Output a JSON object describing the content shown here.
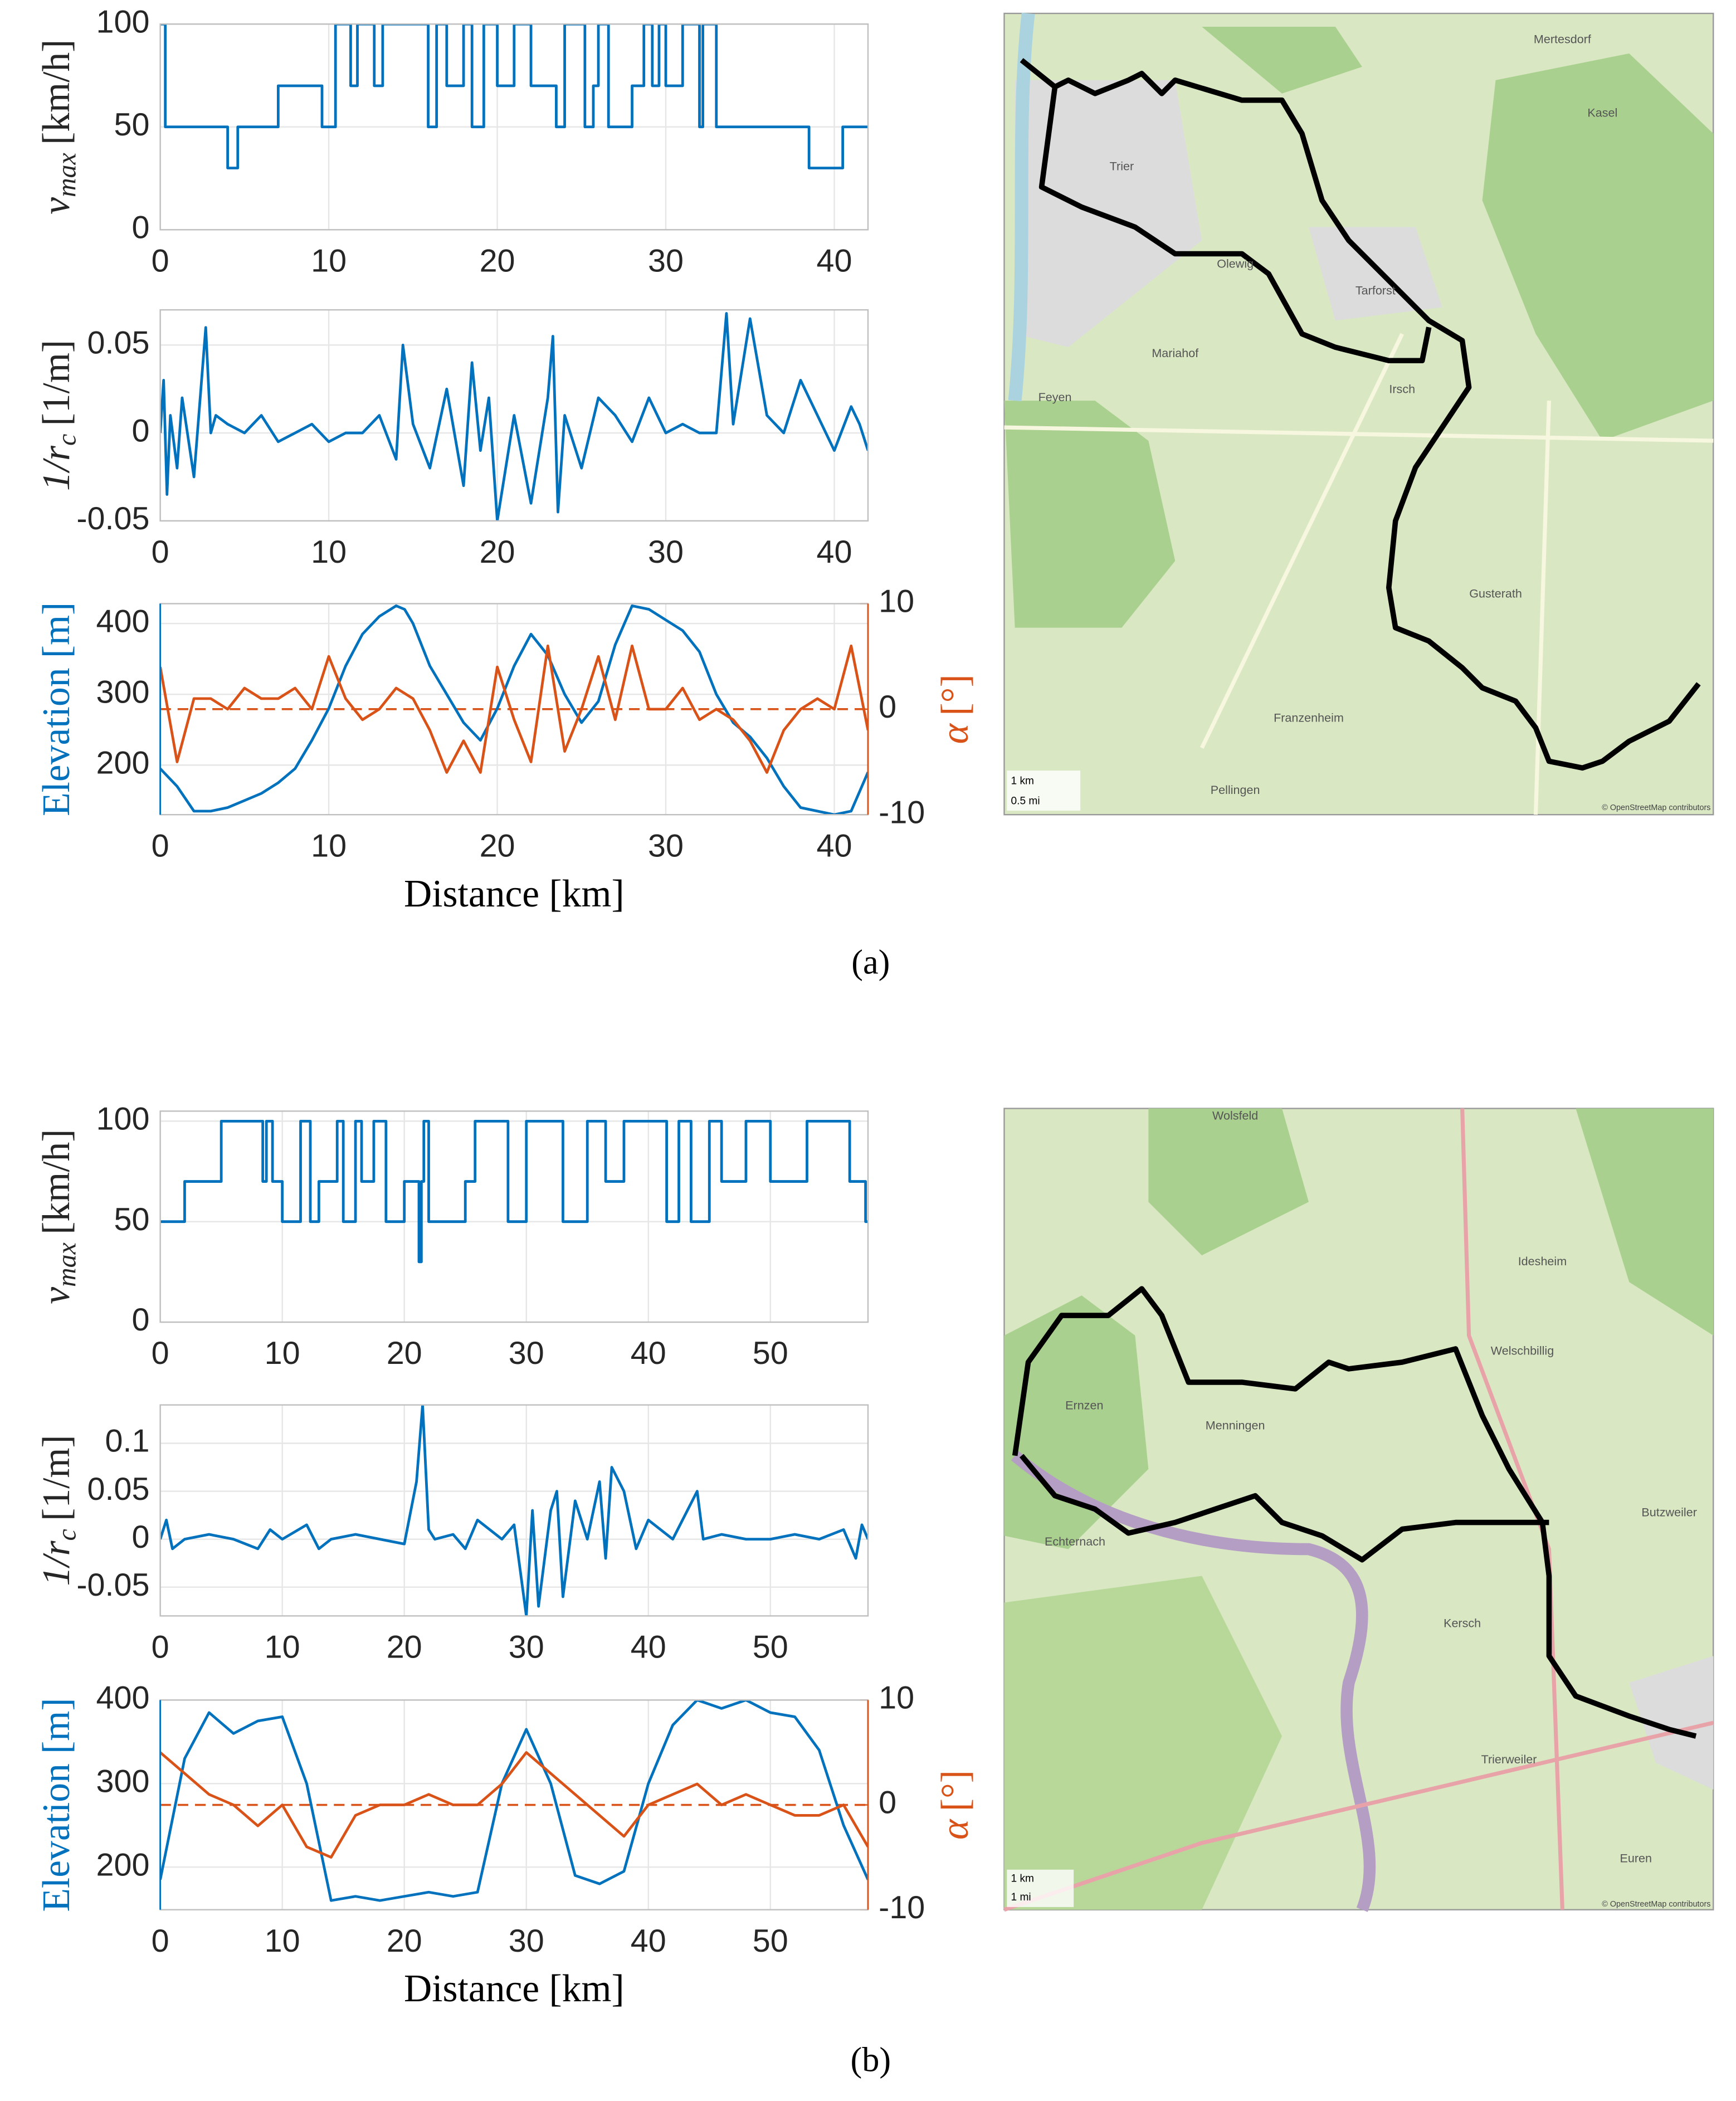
{
  "chart_data": [
    {
      "type": "line",
      "xlim": [
        0,
        42
      ],
      "xticks": [
        0,
        10,
        20,
        30,
        40
      ],
      "ylim": [
        0,
        100
      ],
      "yticks": [
        0,
        50,
        100
      ],
      "grid": true,
      "ylabel": {
        "symbol": "v",
        "subscript": "max",
        "unit": "[km/h]"
      },
      "series": [
        {
          "color": "#0072bd",
          "step": true,
          "x": [
            0,
            0.3,
            4,
            4.6,
            7,
            9.6,
            10.4,
            11.3,
            11.7,
            12.7,
            13.2,
            15.9,
            16.4,
            17,
            18,
            18.5,
            19.2,
            20,
            21,
            22,
            23.5,
            24,
            25.2,
            25.7,
            26,
            26.6,
            28,
            28.7,
            29.2,
            29.6,
            30,
            31,
            32,
            32.2,
            33,
            38.5,
            40.5,
            42
          ],
          "values": [
            100,
            50,
            30,
            50,
            70,
            50,
            100,
            70,
            100,
            70,
            100,
            50,
            100,
            70,
            100,
            50,
            100,
            70,
            100,
            70,
            50,
            100,
            50,
            70,
            100,
            50,
            70,
            100,
            70,
            100,
            70,
            100,
            50,
            100,
            50,
            30,
            50,
            50
          ]
        }
      ]
    },
    {
      "type": "line",
      "xlim": [
        0,
        42
      ],
      "xticks": [
        0,
        10,
        20,
        30,
        40
      ],
      "ylim": [
        -0.05,
        0.07
      ],
      "yticks": [
        -0.05,
        0,
        0.05
      ],
      "grid": true,
      "ylabel": {
        "symbol": "1/r",
        "subscript": "c",
        "unit": "[1/m]"
      },
      "series": [
        {
          "color": "#0072bd",
          "x": [
            0,
            0.2,
            0.4,
            0.6,
            1,
            1.3,
            2,
            2.7,
            3,
            3.3,
            4,
            5,
            6,
            7,
            8,
            9,
            10,
            11,
            12,
            13,
            14,
            14.4,
            15,
            16,
            17,
            18,
            18.5,
            19,
            19.5,
            20,
            21,
            22,
            23,
            23.3,
            23.6,
            24,
            25,
            26,
            27,
            28,
            29,
            30,
            31,
            32,
            33,
            33.6,
            34,
            35,
            36,
            37,
            38,
            39,
            40,
            41,
            41.5,
            42
          ],
          "values": [
            0,
            0.03,
            -0.035,
            0.01,
            -0.02,
            0.02,
            -0.025,
            0.06,
            0,
            0.01,
            0.005,
            0,
            0.01,
            -0.005,
            0,
            0.005,
            -0.005,
            0,
            0,
            0.01,
            -0.015,
            0.05,
            0.005,
            -0.02,
            0.025,
            -0.03,
            0.04,
            -0.01,
            0.02,
            -0.05,
            0.01,
            -0.04,
            0.02,
            0.055,
            -0.045,
            0.01,
            -0.02,
            0.02,
            0.01,
            -0.005,
            0.02,
            0,
            0.005,
            0,
            0,
            0.068,
            0.005,
            0.065,
            0.01,
            0,
            0.03,
            0.01,
            -0.01,
            0.015,
            0.005,
            -0.01
          ]
        }
      ]
    },
    {
      "type": "line",
      "xlim": [
        0,
        42
      ],
      "xticks": [
        0,
        10,
        20,
        30,
        40
      ],
      "ylim": [
        130,
        428
      ],
      "yticks": [
        200,
        300,
        400
      ],
      "y2lim": [
        -10,
        10
      ],
      "y2ticks": [
        -10,
        0,
        10
      ],
      "grid": true,
      "xlabel": "Distance [km]",
      "ylabel": "Elevation [m]",
      "y2label": {
        "symbol": "α",
        "unit": "[°]"
      },
      "y2_reference_line": 0,
      "series": [
        {
          "color": "#0072bd",
          "x": [
            0,
            1,
            2,
            3,
            4,
            5,
            6,
            7,
            8,
            9,
            10,
            11,
            12,
            13,
            14,
            14.5,
            15,
            16,
            17,
            18,
            19,
            20,
            21,
            22,
            23,
            24,
            25,
            26,
            27,
            28,
            29,
            30,
            31,
            32,
            33,
            34,
            35,
            36,
            37,
            38,
            39,
            40,
            41,
            42
          ],
          "values": [
            195,
            170,
            135,
            135,
            140,
            150,
            160,
            175,
            195,
            235,
            280,
            340,
            385,
            410,
            425,
            420,
            400,
            340,
            300,
            260,
            235,
            280,
            340,
            385,
            355,
            300,
            260,
            290,
            370,
            425,
            420,
            405,
            390,
            360,
            300,
            260,
            240,
            210,
            170,
            140,
            135,
            130,
            135,
            190
          ]
        },
        {
          "color": "#d95319",
          "axis": "y2",
          "x": [
            0,
            1,
            2,
            3,
            4,
            5,
            6,
            7,
            8,
            9,
            10,
            11,
            12,
            13,
            14,
            15,
            16,
            17,
            18,
            19,
            20,
            21,
            22,
            23,
            24,
            25,
            26,
            27,
            28,
            29,
            30,
            31,
            32,
            33,
            34,
            35,
            36,
            37,
            38,
            39,
            40,
            41,
            42
          ],
          "values": [
            4,
            -5,
            1,
            1,
            0,
            2,
            1,
            1,
            2,
            0,
            5,
            1,
            -1,
            0,
            2,
            1,
            -2,
            -6,
            -3,
            -6,
            4,
            -1,
            -5,
            6,
            -4,
            0,
            5,
            -1,
            6,
            0,
            0,
            2,
            -1,
            0,
            -1,
            -3,
            -6,
            -2,
            0,
            1,
            0,
            6,
            -2
          ]
        }
      ]
    },
    {
      "type": "line",
      "xlim": [
        0,
        58
      ],
      "xticks": [
        0,
        10,
        20,
        30,
        40,
        50
      ],
      "ylim": [
        0,
        105
      ],
      "yticks": [
        0,
        50,
        100
      ],
      "grid": true,
      "ylabel": {
        "symbol": "v",
        "subscript": "max",
        "unit": "[km/h]"
      },
      "series": [
        {
          "color": "#0072bd",
          "step": true,
          "x": [
            0,
            2,
            5,
            8.4,
            8.7,
            9.2,
            10,
            11.5,
            12.3,
            13,
            14.5,
            15,
            16,
            16.5,
            17.5,
            18.5,
            20,
            21.2,
            21.4,
            21.6,
            22,
            25,
            25.8,
            28.5,
            30,
            33,
            35,
            36.5,
            38,
            41.5,
            42.5,
            43.5,
            45,
            46,
            48,
            50,
            53,
            56.5,
            57.8,
            58
          ],
          "values": [
            50,
            70,
            100,
            70,
            100,
            70,
            50,
            100,
            50,
            70,
            100,
            50,
            100,
            70,
            100,
            50,
            70,
            30,
            70,
            100,
            50,
            70,
            100,
            50,
            100,
            50,
            100,
            70,
            100,
            50,
            100,
            50,
            100,
            70,
            100,
            70,
            100,
            70,
            50,
            50
          ]
        }
      ]
    },
    {
      "type": "line",
      "xlim": [
        0,
        58
      ],
      "xticks": [
        0,
        10,
        20,
        30,
        40,
        50
      ],
      "ylim": [
        -0.08,
        0.14
      ],
      "yticks": [
        -0.05,
        0,
        0.05,
        0.1
      ],
      "grid": true,
      "ylabel": {
        "symbol": "1/r",
        "subscript": "c",
        "unit": "[1/m]"
      },
      "series": [
        {
          "color": "#0072bd",
          "x": [
            0,
            0.5,
            1,
            2,
            4,
            6,
            8,
            9,
            10,
            12,
            13,
            14,
            16,
            18,
            20,
            21,
            21.5,
            22,
            22.5,
            24,
            25,
            26,
            28,
            29,
            30,
            30.5,
            31,
            32,
            32.5,
            33,
            34,
            35,
            36,
            36.5,
            37,
            38,
            39,
            40,
            42,
            44,
            44.5,
            46,
            48,
            50,
            52,
            54,
            56,
            57,
            57.5,
            58
          ],
          "values": [
            0,
            0.02,
            -0.01,
            0,
            0.005,
            0,
            -0.01,
            0.01,
            0,
            0.015,
            -0.01,
            0,
            0.005,
            0,
            -0.005,
            0.06,
            0.14,
            0.01,
            0,
            0.005,
            -0.01,
            0.02,
            0,
            0.015,
            -0.08,
            0.03,
            -0.07,
            0.03,
            0.05,
            -0.06,
            0.04,
            0,
            0.06,
            -0.02,
            0.075,
            0.05,
            -0.01,
            0.02,
            0,
            0.05,
            0,
            0.005,
            0,
            0,
            0.005,
            0,
            0.01,
            -0.02,
            0.015,
            0
          ]
        }
      ]
    },
    {
      "type": "line",
      "xlim": [
        0,
        58
      ],
      "xticks": [
        0,
        10,
        20,
        30,
        40,
        50
      ],
      "ylim": [
        149,
        400
      ],
      "yticks": [
        200,
        300,
        400
      ],
      "y2lim": [
        -10,
        10
      ],
      "y2ticks": [
        -10,
        0,
        10
      ],
      "grid": true,
      "xlabel": "Distance [km]",
      "ylabel": "Elevation [m]",
      "y2label": {
        "symbol": "α",
        "unit": "[°]"
      },
      "y2_reference_line": 0,
      "series": [
        {
          "color": "#0072bd",
          "x": [
            0,
            2,
            4,
            6,
            8,
            10,
            12,
            14,
            16,
            18,
            20,
            22,
            24,
            26,
            28,
            30,
            32,
            34,
            36,
            38,
            40,
            42,
            44,
            46,
            48,
            50,
            52,
            54,
            56,
            58
          ],
          "values": [
            185,
            330,
            385,
            360,
            375,
            380,
            300,
            160,
            165,
            160,
            165,
            170,
            165,
            170,
            300,
            365,
            300,
            190,
            180,
            195,
            300,
            370,
            400,
            390,
            400,
            385,
            380,
            340,
            250,
            185
          ]
        },
        {
          "color": "#d95319",
          "axis": "y2",
          "x": [
            0,
            2,
            4,
            6,
            8,
            10,
            12,
            14,
            16,
            18,
            20,
            22,
            24,
            26,
            28,
            30,
            32,
            34,
            36,
            38,
            40,
            42,
            44,
            46,
            48,
            50,
            52,
            54,
            56,
            58
          ],
          "values": [
            5,
            3,
            1,
            0,
            -2,
            0,
            -4,
            -5,
            -1,
            0,
            0,
            1,
            0,
            0,
            2,
            5,
            3,
            1,
            -1,
            -3,
            0,
            1,
            2,
            0,
            1,
            0,
            -1,
            -1,
            0,
            -4
          ]
        }
      ]
    }
  ],
  "captions": [
    "(a)",
    "(b)"
  ],
  "maps": [
    {
      "labels": [
        "Trier",
        "Olewig",
        "Tarforst",
        "Irsch",
        "Mariahof",
        "Feyen",
        "Gusterath",
        "Franzenheim",
        "Pellingen",
        "Kasel",
        "Mertesdorf"
      ],
      "scale": [
        "1 km",
        "0.5 mi"
      ],
      "attribution": "© OpenStreetMap contributors"
    },
    {
      "labels": [
        "Echternach",
        "Menningen",
        "Idesheim",
        "Welschbillig",
        "Butzweiler",
        "Kersch",
        "Ernzen",
        "Wolsfeld",
        "Trierweiler",
        "Euren"
      ],
      "scale": [
        "1 km",
        "1 mi"
      ],
      "attribution": "© OpenStreetMap contributors"
    }
  ]
}
